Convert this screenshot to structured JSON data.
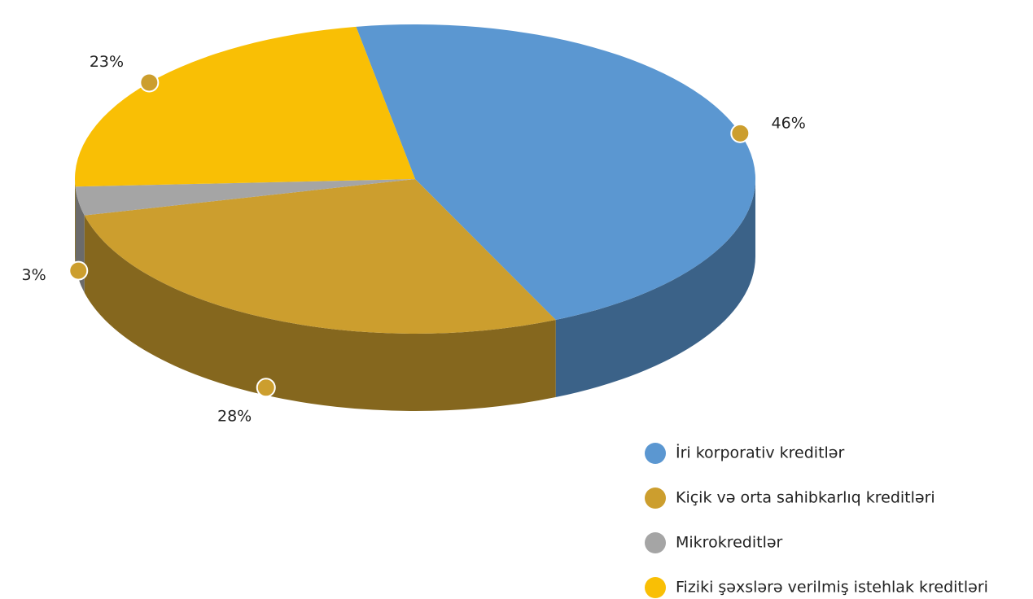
{
  "chart_data": {
    "type": "pie3d",
    "categories": [
      "İri korporativ kreditlər",
      "Kiçik və orta sahibkarlıq kreditləri",
      "Mikrokreditlər",
      "Fiziki şəxslərə verilmiş istehlak kreditləri"
    ],
    "values": [
      46,
      28,
      3,
      23
    ],
    "value_labels": [
      "46%",
      "28%",
      "3%",
      "23%"
    ],
    "colors": [
      "#5b97d1",
      "#cc9e2e",
      "#a5a5a5",
      "#f9bf05"
    ],
    "legend": "bottom-right"
  }
}
